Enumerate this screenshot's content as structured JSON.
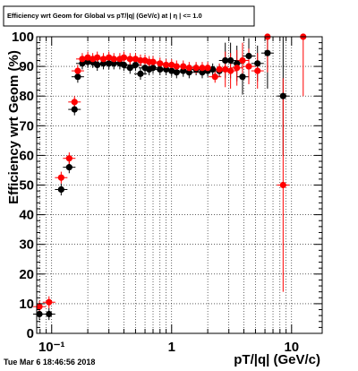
{
  "chart_data": {
    "type": "scatter",
    "title": "Efficiency wrt Geom for Global vs pT/|q| (GeV/c) at | η | <= 1.0",
    "xlabel": "pT/|q| (GeV/c)",
    "ylabel": "Efficiency wrt Geom (%)",
    "xscale": "log",
    "xlim": [
      0.075,
      18
    ],
    "ylim": [
      0,
      100
    ],
    "xticks_labeled": [
      {
        "v": 0.1,
        "label": "10⁻¹"
      },
      {
        "v": 1,
        "label": "1"
      },
      {
        "v": 10,
        "label": "10"
      }
    ],
    "yticks": [
      0,
      10,
      20,
      30,
      40,
      50,
      60,
      70,
      80,
      90,
      100
    ],
    "grid": true,
    "colors": {
      "series_black": "#000000",
      "series_red": "#ff0000"
    },
    "series": [
      {
        "color": "black",
        "points": [
          {
            "x": 0.079,
            "y": 6.5
          },
          {
            "x": 0.095,
            "y": 6.5
          },
          {
            "x": 0.12,
            "y": 48.5
          },
          {
            "x": 0.14,
            "y": 56
          },
          {
            "x": 0.155,
            "y": 75.5
          },
          {
            "x": 0.165,
            "y": 86.5
          },
          {
            "x": 0.18,
            "y": 91
          },
          {
            "x": 0.2,
            "y": 91.5
          },
          {
            "x": 0.22,
            "y": 91.5
          },
          {
            "x": 0.24,
            "y": 90.5
          },
          {
            "x": 0.27,
            "y": 91
          },
          {
            "x": 0.3,
            "y": 91
          },
          {
            "x": 0.33,
            "y": 91
          },
          {
            "x": 0.37,
            "y": 91
          },
          {
            "x": 0.4,
            "y": 90.5
          },
          {
            "x": 0.45,
            "y": 89.5
          },
          {
            "x": 0.5,
            "y": 90.5
          },
          {
            "x": 0.55,
            "y": 87.5
          },
          {
            "x": 0.6,
            "y": 89.5
          },
          {
            "x": 0.65,
            "y": 89
          },
          {
            "x": 0.7,
            "y": 89.5
          },
          {
            "x": 0.8,
            "y": 89
          },
          {
            "x": 0.9,
            "y": 89
          },
          {
            "x": 1.0,
            "y": 88.5
          },
          {
            "x": 1.1,
            "y": 88
          },
          {
            "x": 1.25,
            "y": 88.5
          },
          {
            "x": 1.4,
            "y": 88
          },
          {
            "x": 1.6,
            "y": 89
          },
          {
            "x": 1.8,
            "y": 88
          },
          {
            "x": 2.0,
            "y": 88.5
          },
          {
            "x": 2.2,
            "y": 89
          },
          {
            "x": 2.5,
            "y": 88.5
          },
          {
            "x": 2.8,
            "y": 92
          },
          {
            "x": 3.1,
            "y": 92
          },
          {
            "x": 3.5,
            "y": 91
          },
          {
            "x": 3.9,
            "y": 86.5
          },
          {
            "x": 4.4,
            "y": 93.5
          },
          {
            "x": 5.2,
            "y": 91
          },
          {
            "x": 6.3,
            "y": 94.5
          },
          {
            "x": 8.5,
            "y": 80
          }
        ]
      },
      {
        "color": "red",
        "points": [
          {
            "x": 0.079,
            "y": 9
          },
          {
            "x": 0.095,
            "y": 10.5
          },
          {
            "x": 0.12,
            "y": 52.5
          },
          {
            "x": 0.14,
            "y": 59
          },
          {
            "x": 0.155,
            "y": 78
          },
          {
            "x": 0.165,
            "y": 88.5
          },
          {
            "x": 0.18,
            "y": 92.5
          },
          {
            "x": 0.2,
            "y": 93
          },
          {
            "x": 0.22,
            "y": 92.5
          },
          {
            "x": 0.24,
            "y": 93
          },
          {
            "x": 0.27,
            "y": 92.5
          },
          {
            "x": 0.3,
            "y": 93
          },
          {
            "x": 0.33,
            "y": 92.5
          },
          {
            "x": 0.37,
            "y": 92.5
          },
          {
            "x": 0.4,
            "y": 93
          },
          {
            "x": 0.45,
            "y": 92.5
          },
          {
            "x": 0.5,
            "y": 92.5
          },
          {
            "x": 0.55,
            "y": 92
          },
          {
            "x": 0.6,
            "y": 92
          },
          {
            "x": 0.65,
            "y": 91.5
          },
          {
            "x": 0.7,
            "y": 91.5
          },
          {
            "x": 0.8,
            "y": 91
          },
          {
            "x": 0.9,
            "y": 90.5
          },
          {
            "x": 1.0,
            "y": 90.5
          },
          {
            "x": 1.1,
            "y": 90
          },
          {
            "x": 1.25,
            "y": 90
          },
          {
            "x": 1.4,
            "y": 89.5
          },
          {
            "x": 1.6,
            "y": 89.5
          },
          {
            "x": 1.8,
            "y": 89.5
          },
          {
            "x": 2.0,
            "y": 89.5
          },
          {
            "x": 2.3,
            "y": 86.5
          },
          {
            "x": 2.5,
            "y": 89
          },
          {
            "x": 2.8,
            "y": 89
          },
          {
            "x": 3.1,
            "y": 88.5
          },
          {
            "x": 3.5,
            "y": 89.5
          },
          {
            "x": 3.9,
            "y": 92
          },
          {
            "x": 4.4,
            "y": 90
          },
          {
            "x": 5.2,
            "y": 88.5
          },
          {
            "x": 6.3,
            "y": 100
          },
          {
            "x": 8.5,
            "y": 50
          },
          {
            "x": 12.5,
            "y": 100
          }
        ]
      }
    ]
  },
  "footer": {
    "timestamp": "Tue Mar  6 18:46:56 2018"
  }
}
